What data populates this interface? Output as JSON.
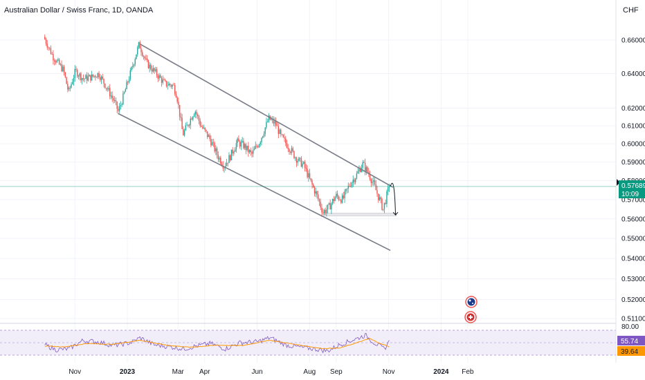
{
  "header": {
    "symbol_title": "Australian Dollar / Swiss Franc, 1D, OANDA",
    "currency": "CHF"
  },
  "colors": {
    "up": "#26a69a",
    "down": "#ef5350",
    "channel": "#787b86",
    "rsi_line": "#7e57c2",
    "rsi_ma": "#ff9800",
    "price_badge": "#089981",
    "grid": "#f0f3fa"
  },
  "price_badge": {
    "price": "0.57689",
    "countdown": "10:09"
  },
  "rsi_badges": {
    "rsi": "55.74",
    "rsi_ma": "39.64"
  },
  "chart_data": {
    "type": "candlestick",
    "price_axis": {
      "labels": [
        "0.66000",
        "0.64000",
        "0.62000",
        "0.61000",
        "0.60000",
        "0.59000",
        "0.58000",
        "0.57000",
        "0.56000",
        "0.55000",
        "0.54000",
        "0.53000",
        "0.52000",
        "0.51100"
      ],
      "scale": "log"
    },
    "rsi_axis": {
      "labels": [
        "80.00"
      ],
      "range": [
        20,
        80
      ]
    },
    "time_axis": {
      "labels": [
        "Nov",
        "2023",
        "Mar",
        "Apr",
        "Jun",
        "Aug",
        "Sep",
        "Nov",
        "2024",
        "Feb"
      ]
    },
    "channel": {
      "upper": [
        [
          "2023-01-16",
          0.6575
        ],
        [
          "2023-11-06",
          0.5765
        ]
      ],
      "lower": [
        [
          "2022-12-21",
          0.617
        ],
        [
          "2023-11-03",
          0.544
        ]
      ]
    },
    "support_zone": {
      "from": "2023-08-17",
      "to": "2023-11-10",
      "low": 0.5615,
      "high": 0.563
    },
    "last_price": 0.57689,
    "price_path": [
      [
        "2022-09-27",
        0.662
      ],
      [
        "2022-10-08",
        0.65
      ],
      [
        "2022-10-20",
        0.642
      ],
      [
        "2022-10-26",
        0.629
      ],
      [
        "2022-11-03",
        0.6415
      ],
      [
        "2022-11-12",
        0.637
      ],
      [
        "2022-11-22",
        0.638
      ],
      [
        "2022-11-30",
        0.64
      ],
      [
        "2022-12-08",
        0.633
      ],
      [
        "2022-12-18",
        0.624
      ],
      [
        "2022-12-23",
        0.618
      ],
      [
        "2022-12-29",
        0.627
      ],
      [
        "2023-01-07",
        0.642
      ],
      [
        "2023-01-16",
        0.6575
      ],
      [
        "2023-01-25",
        0.646
      ],
      [
        "2023-02-05",
        0.64
      ],
      [
        "2023-02-15",
        0.634
      ],
      [
        "2023-02-25",
        0.633
      ],
      [
        "2023-03-01",
        0.627
      ],
      [
        "2023-03-08",
        0.605
      ],
      [
        "2023-03-14",
        0.611
      ],
      [
        "2023-03-22",
        0.619
      ],
      [
        "2023-03-29",
        0.61
      ],
      [
        "2023-04-08",
        0.603
      ],
      [
        "2023-04-18",
        0.593
      ],
      [
        "2023-04-25",
        0.588
      ],
      [
        "2023-05-02",
        0.593
      ],
      [
        "2023-05-10",
        0.601
      ],
      [
        "2023-05-18",
        0.599
      ],
      [
        "2023-05-27",
        0.594
      ],
      [
        "2023-06-05",
        0.601
      ],
      [
        "2023-06-16",
        0.614
      ],
      [
        "2023-06-24",
        0.611
      ],
      [
        "2023-06-30",
        0.604
      ],
      [
        "2023-07-08",
        0.599
      ],
      [
        "2023-07-18",
        0.592
      ],
      [
        "2023-07-27",
        0.588
      ],
      [
        "2023-08-03",
        0.58
      ],
      [
        "2023-08-10",
        0.573
      ],
      [
        "2023-08-18",
        0.5635
      ],
      [
        "2023-08-25",
        0.566
      ],
      [
        "2023-09-02",
        0.572
      ],
      [
        "2023-09-10",
        0.57
      ],
      [
        "2023-09-18",
        0.578
      ],
      [
        "2023-09-26",
        0.583
      ],
      [
        "2023-10-03",
        0.589
      ],
      [
        "2023-10-10",
        0.584
      ],
      [
        "2023-10-16",
        0.578
      ],
      [
        "2023-10-22",
        0.571
      ],
      [
        "2023-10-27",
        0.565
      ],
      [
        "2023-11-03",
        0.5769
      ]
    ],
    "projection": [
      [
        "2023-11-03",
        0.5769
      ],
      [
        "2023-11-06",
        0.579
      ],
      [
        "2023-11-09",
        0.562
      ]
    ],
    "rsi": {
      "path": [
        [
          "2022-09-27",
          45
        ],
        [
          "2022-10-10",
          33
        ],
        [
          "2022-10-25",
          35
        ],
        [
          "2022-11-10",
          55
        ],
        [
          "2022-11-28",
          52
        ],
        [
          "2022-12-15",
          43
        ],
        [
          "2023-01-05",
          50
        ],
        [
          "2023-01-16",
          62
        ],
        [
          "2023-02-01",
          45
        ],
        [
          "2023-02-20",
          40
        ],
        [
          "2023-03-08",
          35
        ],
        [
          "2023-03-22",
          42
        ],
        [
          "2023-04-08",
          48
        ],
        [
          "2023-04-25",
          35
        ],
        [
          "2023-05-12",
          50
        ],
        [
          "2023-06-01",
          52
        ],
        [
          "2023-06-16",
          62
        ],
        [
          "2023-07-05",
          44
        ],
        [
          "2023-07-25",
          38
        ],
        [
          "2023-08-10",
          34
        ],
        [
          "2023-08-22",
          30
        ],
        [
          "2023-09-05",
          45
        ],
        [
          "2023-09-25",
          60
        ],
        [
          "2023-10-05",
          68
        ],
        [
          "2023-10-15",
          50
        ],
        [
          "2023-10-27",
          35
        ],
        [
          "2023-11-03",
          55.74
        ]
      ],
      "ma_path": [
        [
          "2022-09-27",
          42
        ],
        [
          "2022-10-20",
          40
        ],
        [
          "2022-11-15",
          48
        ],
        [
          "2022-12-15",
          46
        ],
        [
          "2023-01-16",
          56
        ],
        [
          "2023-02-15",
          44
        ],
        [
          "2023-03-15",
          39
        ],
        [
          "2023-04-15",
          44
        ],
        [
          "2023-05-15",
          43
        ],
        [
          "2023-06-15",
          56
        ],
        [
          "2023-07-15",
          46
        ],
        [
          "2023-08-15",
          36
        ],
        [
          "2023-09-05",
          37
        ],
        [
          "2023-09-25",
          50
        ],
        [
          "2023-10-10",
          60
        ],
        [
          "2023-10-22",
          48
        ],
        [
          "2023-11-03",
          39.64
        ]
      ]
    }
  }
}
